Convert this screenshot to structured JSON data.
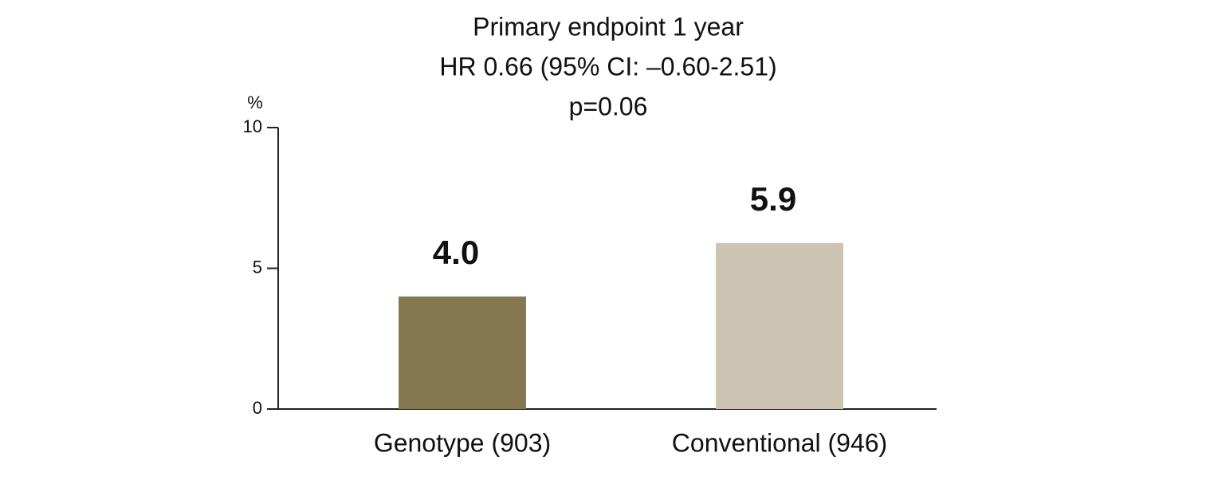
{
  "chart_data": {
    "type": "bar",
    "title": [
      "Primary endpoint 1 year",
      "HR 0.66 (95% CI: –0.60-2.51)",
      "p=0.06"
    ],
    "y_label": "%",
    "categories": [
      "Genotype (903)",
      "Conventional (946)"
    ],
    "values": [
      4.0,
      5.9
    ],
    "value_labels": [
      "4.0",
      "5.9"
    ],
    "colors": [
      "#857850",
      "#cdc5b4"
    ],
    "ylim": [
      0,
      10
    ],
    "yticks": [
      0,
      5,
      10
    ],
    "grid": false
  }
}
